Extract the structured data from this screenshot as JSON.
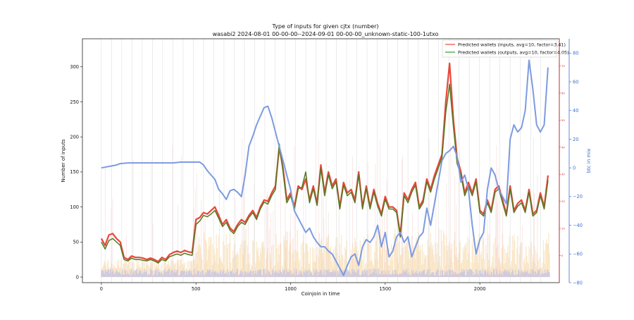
{
  "figure": {
    "title_line1": "Type of inputs for given cjtx (number)",
    "title_line2": "wasabi2 2024-08-01 00-00-00--2024-09-01 00-00-00_unknown-static-100-1utxo"
  },
  "chart_data": {
    "type": "line",
    "title": "Type of inputs for given cjtx (number)",
    "subtitle": "wasabi2 2024-08-01 00-00-00--2024-09-01 00-00-00_unknown-static-100-1utxo",
    "xlabel": "Coinjoin in time",
    "ylabel_left": "Number of inputs",
    "ylabel_right": "btc in mix",
    "xlim": [
      -100,
      2420
    ],
    "ylim_left": [
      -8,
      340
    ],
    "ylim_right": [
      -80,
      90
    ],
    "ylim_red_axis": [
      -10,
      80
    ],
    "x_ticks": [
      0,
      500,
      1000,
      1500,
      2000
    ],
    "x_tick_labels": [
      "0",
      "500",
      "1000",
      "1500",
      "2000"
    ],
    "y_left_ticks": [
      0,
      50,
      100,
      150,
      200,
      250,
      300
    ],
    "y_left_tick_labels": [
      "0",
      "50",
      "100",
      "150",
      "200",
      "250",
      "300"
    ],
    "y_right_ticks": [
      -80,
      -60,
      -40,
      -20,
      0,
      20,
      40,
      60,
      80
    ],
    "y_right_tick_labels": [
      "−80",
      "−60",
      "−40",
      "−20",
      "0",
      "20",
      "40",
      "60",
      "80"
    ],
    "y_red_ticks": [
      0,
      10,
      20,
      30,
      40,
      50,
      60,
      70
    ],
    "y_red_tick_labels": [
      "0",
      "10",
      "20",
      "30",
      "40",
      "50",
      "60",
      "70"
    ],
    "grid": false,
    "legend_position": "top-right",
    "legend": [
      {
        "label": "Predicted wallets (inputs, avg=10, factor=3.41)",
        "color": "#e8473a"
      },
      {
        "label": "Predicted wallets (outputs, avg=10, factor=4.05)",
        "color": "#2ca02c"
      }
    ],
    "colors": {
      "inputs": "#e8473a",
      "outputs": "#2ca02c",
      "overlap": "#7a5a1e",
      "btc": "#7d9be0",
      "background_bars_orange": "#f5d9a8",
      "background_bars_blue": "#aab3f5",
      "background_bars_red": "#f3c6c6",
      "right_axis": "#3b6fd1",
      "red_axis": "#d62728"
    },
    "series": [
      {
        "name": "Predicted wallets (inputs, avg=10, factor=3.41)",
        "x": [
          0,
          20,
          40,
          60,
          80,
          100,
          120,
          140,
          160,
          180,
          200,
          220,
          240,
          260,
          280,
          300,
          320,
          340,
          360,
          380,
          400,
          420,
          440,
          460,
          480,
          500,
          520,
          540,
          560,
          580,
          600,
          620,
          640,
          660,
          680,
          700,
          720,
          740,
          760,
          780,
          800,
          820,
          840,
          860,
          880,
          900,
          920,
          940,
          960,
          980,
          1000,
          1020,
          1040,
          1060,
          1080,
          1100,
          1120,
          1140,
          1160,
          1180,
          1200,
          1220,
          1240,
          1260,
          1280,
          1300,
          1320,
          1340,
          1360,
          1380,
          1400,
          1420,
          1440,
          1460,
          1480,
          1500,
          1520,
          1540,
          1560,
          1580,
          1600,
          1620,
          1640,
          1660,
          1680,
          1700,
          1720,
          1740,
          1760,
          1780,
          1800,
          1820,
          1840,
          1860,
          1880,
          1900,
          1920,
          1940,
          1960,
          1980,
          2000,
          2020,
          2040,
          2060,
          2080,
          2100,
          2120,
          2140,
          2160,
          2180,
          2200,
          2220,
          2240,
          2260,
          2280,
          2300,
          2320,
          2340,
          2360
        ],
        "values": [
          55,
          45,
          60,
          62,
          55,
          50,
          28,
          25,
          30,
          28,
          28,
          27,
          25,
          27,
          25,
          22,
          28,
          25,
          32,
          35,
          37,
          35,
          38,
          36,
          35,
          82,
          85,
          92,
          90,
          95,
          100,
          88,
          75,
          82,
          70,
          65,
          75,
          82,
          78,
          88,
          95,
          85,
          100,
          110,
          108,
          120,
          130,
          185,
          155,
          110,
          120,
          100,
          130,
          125,
          140,
          110,
          130,
          105,
          160,
          120,
          150,
          130,
          140,
          100,
          135,
          120,
          125,
          110,
          150,
          100,
          130,
          100,
          125,
          105,
          90,
          115,
          100,
          100,
          95,
          60,
          120,
          110,
          125,
          135,
          100,
          110,
          140,
          125,
          145,
          160,
          175,
          250,
          305,
          225,
          170,
          150,
          120,
          135,
          120,
          140,
          95,
          90,
          110,
          95,
          125,
          130,
          110,
          90,
          130,
          95,
          105,
          110,
          95,
          125,
          90,
          95,
          120,
          100,
          145
        ]
      },
      {
        "name": "Predicted wallets (outputs, avg=10, factor=4.05)",
        "x": [
          0,
          20,
          40,
          60,
          80,
          100,
          120,
          140,
          160,
          180,
          200,
          220,
          240,
          260,
          280,
          300,
          320,
          340,
          360,
          380,
          400,
          420,
          440,
          460,
          480,
          500,
          520,
          540,
          560,
          580,
          600,
          620,
          640,
          660,
          680,
          700,
          720,
          740,
          760,
          780,
          800,
          820,
          840,
          860,
          880,
          900,
          920,
          940,
          960,
          980,
          1000,
          1020,
          1040,
          1060,
          1080,
          1100,
          1120,
          1140,
          1160,
          1180,
          1200,
          1220,
          1240,
          1260,
          1280,
          1300,
          1320,
          1340,
          1360,
          1380,
          1400,
          1420,
          1440,
          1460,
          1480,
          1500,
          1520,
          1540,
          1560,
          1580,
          1600,
          1620,
          1640,
          1660,
          1680,
          1700,
          1720,
          1740,
          1760,
          1780,
          1800,
          1820,
          1840,
          1860,
          1880,
          1900,
          1920,
          1940,
          1960,
          1980,
          2000,
          2020,
          2040,
          2060,
          2080,
          2100,
          2120,
          2140,
          2160,
          2180,
          2200,
          2220,
          2240,
          2260,
          2280,
          2300,
          2320,
          2340,
          2360
        ],
        "values": [
          50,
          40,
          52,
          55,
          50,
          45,
          25,
          23,
          27,
          25,
          25,
          24,
          23,
          25,
          23,
          20,
          25,
          23,
          29,
          31,
          33,
          31,
          34,
          32,
          31,
          75,
          80,
          88,
          86,
          90,
          95,
          84,
          72,
          78,
          67,
          62,
          72,
          78,
          75,
          85,
          92,
          82,
          97,
          107,
          104,
          116,
          125,
          190,
          150,
          106,
          116,
          97,
          126,
          128,
          150,
          106,
          126,
          102,
          155,
          116,
          146,
          126,
          136,
          97,
          131,
          116,
          121,
          106,
          146,
          97,
          126,
          97,
          121,
          101,
          87,
          111,
          97,
          97,
          92,
          57,
          116,
          106,
          121,
          131,
          97,
          106,
          136,
          121,
          140,
          155,
          170,
          235,
          275,
          215,
          162,
          146,
          116,
          130,
          116,
          136,
          92,
          87,
          106,
          92,
          121,
          126,
          106,
          87,
          126,
          92,
          101,
          106,
          92,
          121,
          87,
          92,
          116,
          97,
          138
        ]
      },
      {
        "name": "btc in mix",
        "axis": "right",
        "x": [
          0,
          40,
          80,
          100,
          140,
          180,
          220,
          260,
          300,
          340,
          380,
          420,
          460,
          490,
          520,
          540,
          560,
          580,
          600,
          620,
          640,
          660,
          680,
          700,
          720,
          740,
          760,
          780,
          800,
          820,
          840,
          860,
          880,
          900,
          920,
          940,
          960,
          980,
          1000,
          1020,
          1040,
          1060,
          1080,
          1100,
          1120,
          1140,
          1160,
          1180,
          1200,
          1220,
          1240,
          1260,
          1280,
          1300,
          1320,
          1340,
          1360,
          1380,
          1400,
          1420,
          1440,
          1460,
          1480,
          1500,
          1520,
          1540,
          1560,
          1580,
          1600,
          1620,
          1640,
          1660,
          1680,
          1700,
          1720,
          1740,
          1760,
          1780,
          1800,
          1820,
          1840,
          1860,
          1880,
          1900,
          1920,
          1940,
          1960,
          1980,
          2000,
          2020,
          2040,
          2060,
          2080,
          2100,
          2120,
          2140,
          2160,
          2180,
          2200,
          2220,
          2240,
          2260,
          2280,
          2300,
          2320,
          2340,
          2360
        ],
        "values": [
          0,
          1,
          2,
          3,
          3.5,
          3.5,
          3.5,
          3.5,
          3.5,
          3.5,
          3.5,
          4,
          4,
          4,
          4,
          2,
          -2,
          -5,
          -8,
          -15,
          -18,
          -22,
          -16,
          -15,
          -17,
          -20,
          -5,
          15,
          22,
          30,
          36,
          42,
          43,
          35,
          25,
          15,
          5,
          -5,
          -15,
          -30,
          -35,
          -40,
          -45,
          -42,
          -48,
          -52,
          -55,
          -55,
          -58,
          -60,
          -65,
          -70,
          -75,
          -68,
          -62,
          -60,
          -68,
          -55,
          -50,
          -52,
          -48,
          -40,
          -55,
          -45,
          -62,
          -58,
          -48,
          -45,
          -52,
          -48,
          -62,
          -55,
          -48,
          -45,
          -28,
          -40,
          -25,
          -10,
          5,
          10,
          12,
          15,
          8,
          -10,
          -5,
          -15,
          -40,
          -60,
          -50,
          -45,
          -15,
          0,
          -5,
          -15,
          -20,
          -25,
          20,
          30,
          25,
          28,
          40,
          75,
          55,
          30,
          25,
          30,
          70
        ]
      }
    ]
  }
}
